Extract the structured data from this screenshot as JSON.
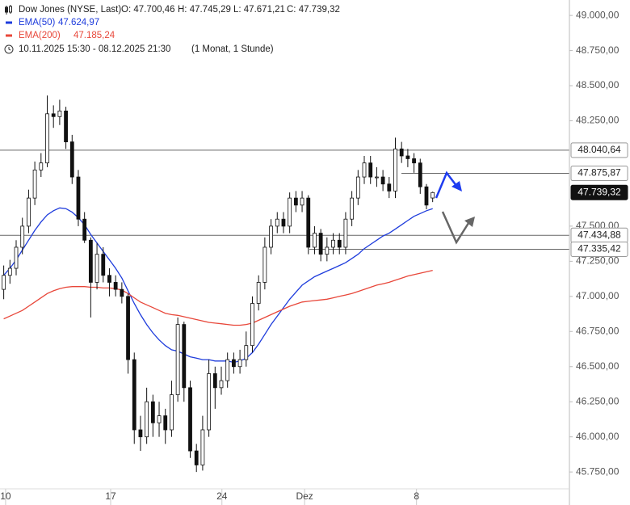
{
  "chart_data": {
    "type": "candlestick",
    "title": "Dow Jones (NYSE, Last)",
    "ohlc_labels": [
      "O: 47.700,46",
      "H: 47.745,29",
      "L: 47.671,21",
      "C: 47.739,32"
    ],
    "period": "10.11.2025 15:30 - 08.12.2025 21:30",
    "resolution": "(1 Monat, 1 Stunde)",
    "x": [
      0,
      1,
      2,
      3,
      4,
      5,
      6,
      7,
      8,
      9,
      10,
      11,
      12,
      13,
      14,
      15,
      16,
      17,
      18,
      19,
      20,
      21,
      22,
      23,
      24,
      25,
      26,
      27,
      28,
      29,
      30,
      31,
      32,
      33,
      34,
      35,
      36,
      37,
      38,
      39,
      40,
      41,
      42,
      43,
      44,
      45,
      46,
      47,
      48,
      49,
      50,
      51,
      52,
      53,
      54,
      55,
      56,
      57,
      58,
      59,
      60,
      61,
      62,
      63,
      64,
      65,
      66,
      67,
      68,
      69
    ],
    "candles": {
      "open": [
        47050,
        47150,
        47200,
        47350,
        47500,
        47700,
        47900,
        47950,
        48300,
        48280,
        48320,
        48100,
        47850,
        47550,
        47400,
        47100,
        47300,
        47150,
        47100,
        47050,
        47000,
        46550,
        46050,
        46000,
        46250,
        46100,
        46150,
        46050,
        46300,
        46800,
        46350,
        45900,
        45800,
        46050,
        46450,
        46350,
        46400,
        46550,
        46500,
        46550,
        46650,
        46950,
        47100,
        47350,
        47500,
        47550,
        47500,
        47700,
        47650,
        47700,
        47350,
        47450,
        47300,
        47350,
        47400,
        47350,
        47550,
        47700,
        47850,
        47950,
        47850,
        47850,
        47800,
        47750,
        48050,
        48000,
        47980,
        47950,
        47780,
        47700.46
      ],
      "high": [
        47220,
        47260,
        47400,
        47560,
        47760,
        47960,
        48020,
        48430,
        48360,
        48400,
        48350,
        48150,
        47900,
        47600,
        47420,
        47380,
        47350,
        47200,
        47150,
        47100,
        47020,
        46600,
        46150,
        46350,
        46300,
        46250,
        46200,
        46400,
        46850,
        46820,
        46400,
        45950,
        46150,
        46550,
        46500,
        46500,
        46600,
        46600,
        46620,
        46750,
        47000,
        47150,
        47420,
        47550,
        47600,
        47600,
        47740,
        47750,
        47750,
        47720,
        47500,
        47480,
        47420,
        47450,
        47450,
        47600,
        47750,
        47900,
        48000,
        48000,
        47920,
        47900,
        47850,
        48130,
        48100,
        48050,
        48020,
        47980,
        47800,
        47745.29
      ],
      "low": [
        46980,
        47090,
        47150,
        47300,
        47450,
        47650,
        47850,
        47920,
        48200,
        48220,
        48050,
        47800,
        47500,
        47380,
        46850,
        47050,
        47100,
        47000,
        47000,
        46950,
        46450,
        45950,
        45900,
        45950,
        46000,
        46000,
        45950,
        46000,
        46250,
        46250,
        45850,
        45750,
        45760,
        46000,
        46200,
        46300,
        46350,
        46450,
        46450,
        46500,
        46600,
        46900,
        47050,
        47300,
        47450,
        47450,
        47450,
        47600,
        47600,
        47300,
        47300,
        47250,
        47250,
        47300,
        47300,
        47300,
        47500,
        47650,
        47800,
        47800,
        47780,
        47750,
        47700,
        47700,
        47950,
        47920,
        47880,
        47730,
        47620,
        47671.21
      ],
      "close": [
        47150,
        47200,
        47350,
        47500,
        47700,
        47900,
        47950,
        48300,
        48280,
        48320,
        48100,
        47850,
        47550,
        47400,
        47100,
        47300,
        47150,
        47100,
        47050,
        47000,
        46550,
        46050,
        46000,
        46250,
        46100,
        46150,
        46050,
        46300,
        46800,
        46350,
        45900,
        45800,
        46050,
        46450,
        46350,
        46400,
        46550,
        46500,
        46550,
        46650,
        46950,
        47100,
        47350,
        47500,
        47550,
        47500,
        47700,
        47650,
        47700,
        47350,
        47450,
        47300,
        47350,
        47400,
        47350,
        47550,
        47700,
        47850,
        47950,
        47850,
        47850,
        47800,
        47750,
        48050,
        48000,
        47980,
        47950,
        47780,
        47650,
        47739.32
      ]
    },
    "series": [
      {
        "name": "EMA(50)",
        "value_label": "47.624,97",
        "color": "#1e3cdc",
        "values": [
          47150,
          47200,
          47260,
          47330,
          47400,
          47470,
          47530,
          47580,
          47610,
          47630,
          47625,
          47600,
          47560,
          47510,
          47440,
          47380,
          47320,
          47260,
          47200,
          47130,
          47040,
          46950,
          46870,
          46800,
          46740,
          46690,
          46650,
          46620,
          46610,
          46590,
          46570,
          46560,
          46550,
          46550,
          46540,
          46540,
          46540,
          46530,
          46540,
          46560,
          46600,
          46660,
          46730,
          46800,
          46860,
          46920,
          46980,
          47030,
          47080,
          47110,
          47140,
          47160,
          47180,
          47200,
          47220,
          47240,
          47270,
          47300,
          47340,
          47370,
          47400,
          47430,
          47450,
          47480,
          47510,
          47540,
          47570,
          47590,
          47610,
          47624.97
        ]
      },
      {
        "name": "EMA(200)",
        "value_label": "47.185,24",
        "color": "#e8473a",
        "values": [
          46840,
          46860,
          46880,
          46900,
          46930,
          46960,
          46990,
          47020,
          47040,
          47055,
          47065,
          47070,
          47070,
          47070,
          47065,
          47065,
          47060,
          47060,
          47055,
          47045,
          47020,
          46990,
          46960,
          46940,
          46920,
          46900,
          46880,
          46870,
          46865,
          46855,
          46845,
          46835,
          46825,
          46815,
          46810,
          46805,
          46800,
          46795,
          46795,
          46800,
          46810,
          46830,
          46850,
          46870,
          46890,
          46910,
          46930,
          46945,
          46960,
          46965,
          46970,
          46975,
          46980,
          46990,
          47000,
          47010,
          47020,
          47035,
          47050,
          47065,
          47080,
          47090,
          47100,
          47115,
          47130,
          47145,
          47155,
          47165,
          47175,
          47185.24
        ]
      }
    ],
    "levels": [
      {
        "value": 48040.64,
        "label": "48.040,64"
      },
      {
        "value": 47875.87,
        "label": "47.875,87"
      },
      {
        "value": 47434.88,
        "label": "47.434,88"
      },
      {
        "value": 47335.42,
        "label": "47.335,42"
      }
    ],
    "last_price": {
      "value": 47739.32,
      "label": "47.739,32"
    },
    "xlim": [
      -0.6,
      91
    ],
    "xticks": [
      {
        "value": 0.3,
        "label": "10"
      },
      {
        "value": 17.2,
        "label": "17"
      },
      {
        "value": 35.1,
        "label": "24"
      },
      {
        "value": 48.4,
        "label": "Dez"
      },
      {
        "value": 66.4,
        "label": "8"
      }
    ],
    "ylim": [
      45630,
      49110
    ],
    "yticks": [
      {
        "value": 49000,
        "label": "49.000,00"
      },
      {
        "value": 48750,
        "label": "48.750,00"
      },
      {
        "value": 48500,
        "label": "48.500,00"
      },
      {
        "value": 48250,
        "label": "48.250,00"
      },
      {
        "value": 47500,
        "label": "47.500,00"
      },
      {
        "value": 47250,
        "label": "47.250,00"
      },
      {
        "value": 47000,
        "label": "47.000,00"
      },
      {
        "value": 46750,
        "label": "46.750,00"
      },
      {
        "value": 46500,
        "label": "46.500,00"
      },
      {
        "value": 46250,
        "label": "46.250,00"
      },
      {
        "value": 46000,
        "label": "46.000,00"
      },
      {
        "value": 45750,
        "label": "45.750,00"
      }
    ]
  }
}
